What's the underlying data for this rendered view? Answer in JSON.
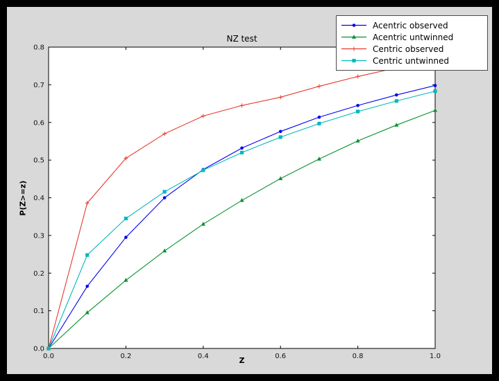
{
  "figure": {
    "background": "#000000",
    "figure_face": "#d9d9d9",
    "axes_face": "#ffffff",
    "axes_edge": "#000000"
  },
  "chart_data": {
    "type": "line",
    "title": "NZ test",
    "xlabel": "Z",
    "ylabel": "P(Z>=z)",
    "xlim": [
      0,
      1.0
    ],
    "ylim": [
      0,
      0.8
    ],
    "grid": false,
    "legend_position": "upper right, overlapping top of axes",
    "x_ticks": [
      "0.0",
      "0.2",
      "0.4",
      "0.6",
      "0.8",
      "1.0"
    ],
    "y_ticks": [
      "0.0",
      "0.1",
      "0.2",
      "0.3",
      "0.4",
      "0.5",
      "0.6",
      "0.7",
      "0.8"
    ],
    "x": [
      0.0,
      0.1,
      0.2,
      0.3,
      0.4,
      0.5,
      0.6,
      0.7,
      0.8,
      0.9,
      1.0
    ],
    "series": [
      {
        "name": "Acentric observed",
        "color": "#0000ee",
        "marker": "circle",
        "values": [
          0.0,
          0.165,
          0.295,
          0.4,
          0.475,
          0.532,
          0.576,
          0.614,
          0.645,
          0.673,
          0.698
        ]
      },
      {
        "name": "Acentric untwinned",
        "color": "#089030",
        "marker": "triangle-up",
        "values": [
          0.0,
          0.095,
          0.181,
          0.259,
          0.33,
          0.393,
          0.451,
          0.503,
          0.551,
          0.593,
          0.632
        ]
      },
      {
        "name": "Centric observed",
        "color": "#e8392b",
        "marker": "plus",
        "values": [
          0.0,
          0.386,
          0.505,
          0.57,
          0.617,
          0.645,
          0.667,
          0.696,
          0.722,
          0.745,
          0.757
        ]
      },
      {
        "name": "Centric untwinned",
        "color": "#00b8be",
        "marker": "square",
        "values": [
          0.0,
          0.248,
          0.345,
          0.416,
          0.473,
          0.52,
          0.561,
          0.597,
          0.629,
          0.657,
          0.683
        ]
      }
    ]
  }
}
